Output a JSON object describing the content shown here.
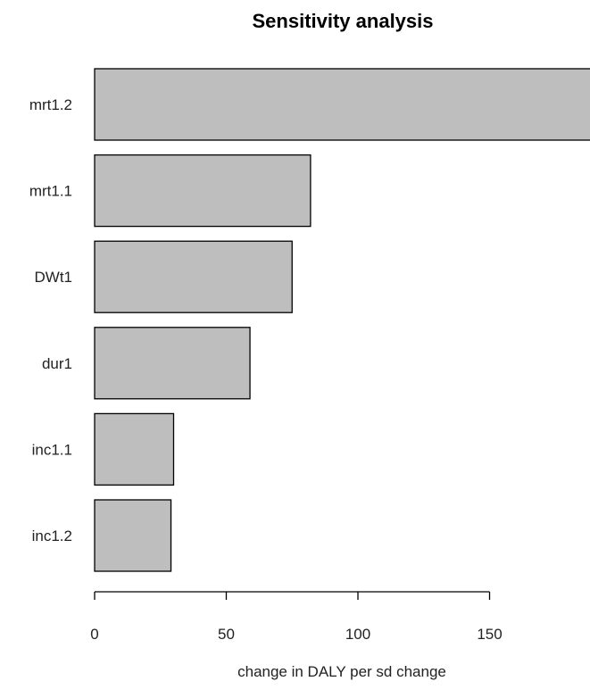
{
  "chart_data": {
    "type": "bar",
    "orientation": "horizontal",
    "title": "Sensitivity analysis",
    "xlabel": "change in DALY per sd change",
    "ylabel": "",
    "categories": [
      "mrt1.2",
      "mrt1.1",
      "DWt1",
      "dur1",
      "inc1.1",
      "inc1.2"
    ],
    "values": [
      190,
      82,
      75,
      59,
      30,
      29
    ],
    "xlim": [
      0,
      190
    ],
    "xticks": [
      0,
      50,
      100,
      150
    ],
    "grid": false,
    "colors": {
      "bar_fill": "#bebebe",
      "bar_stroke": "#000000"
    }
  }
}
